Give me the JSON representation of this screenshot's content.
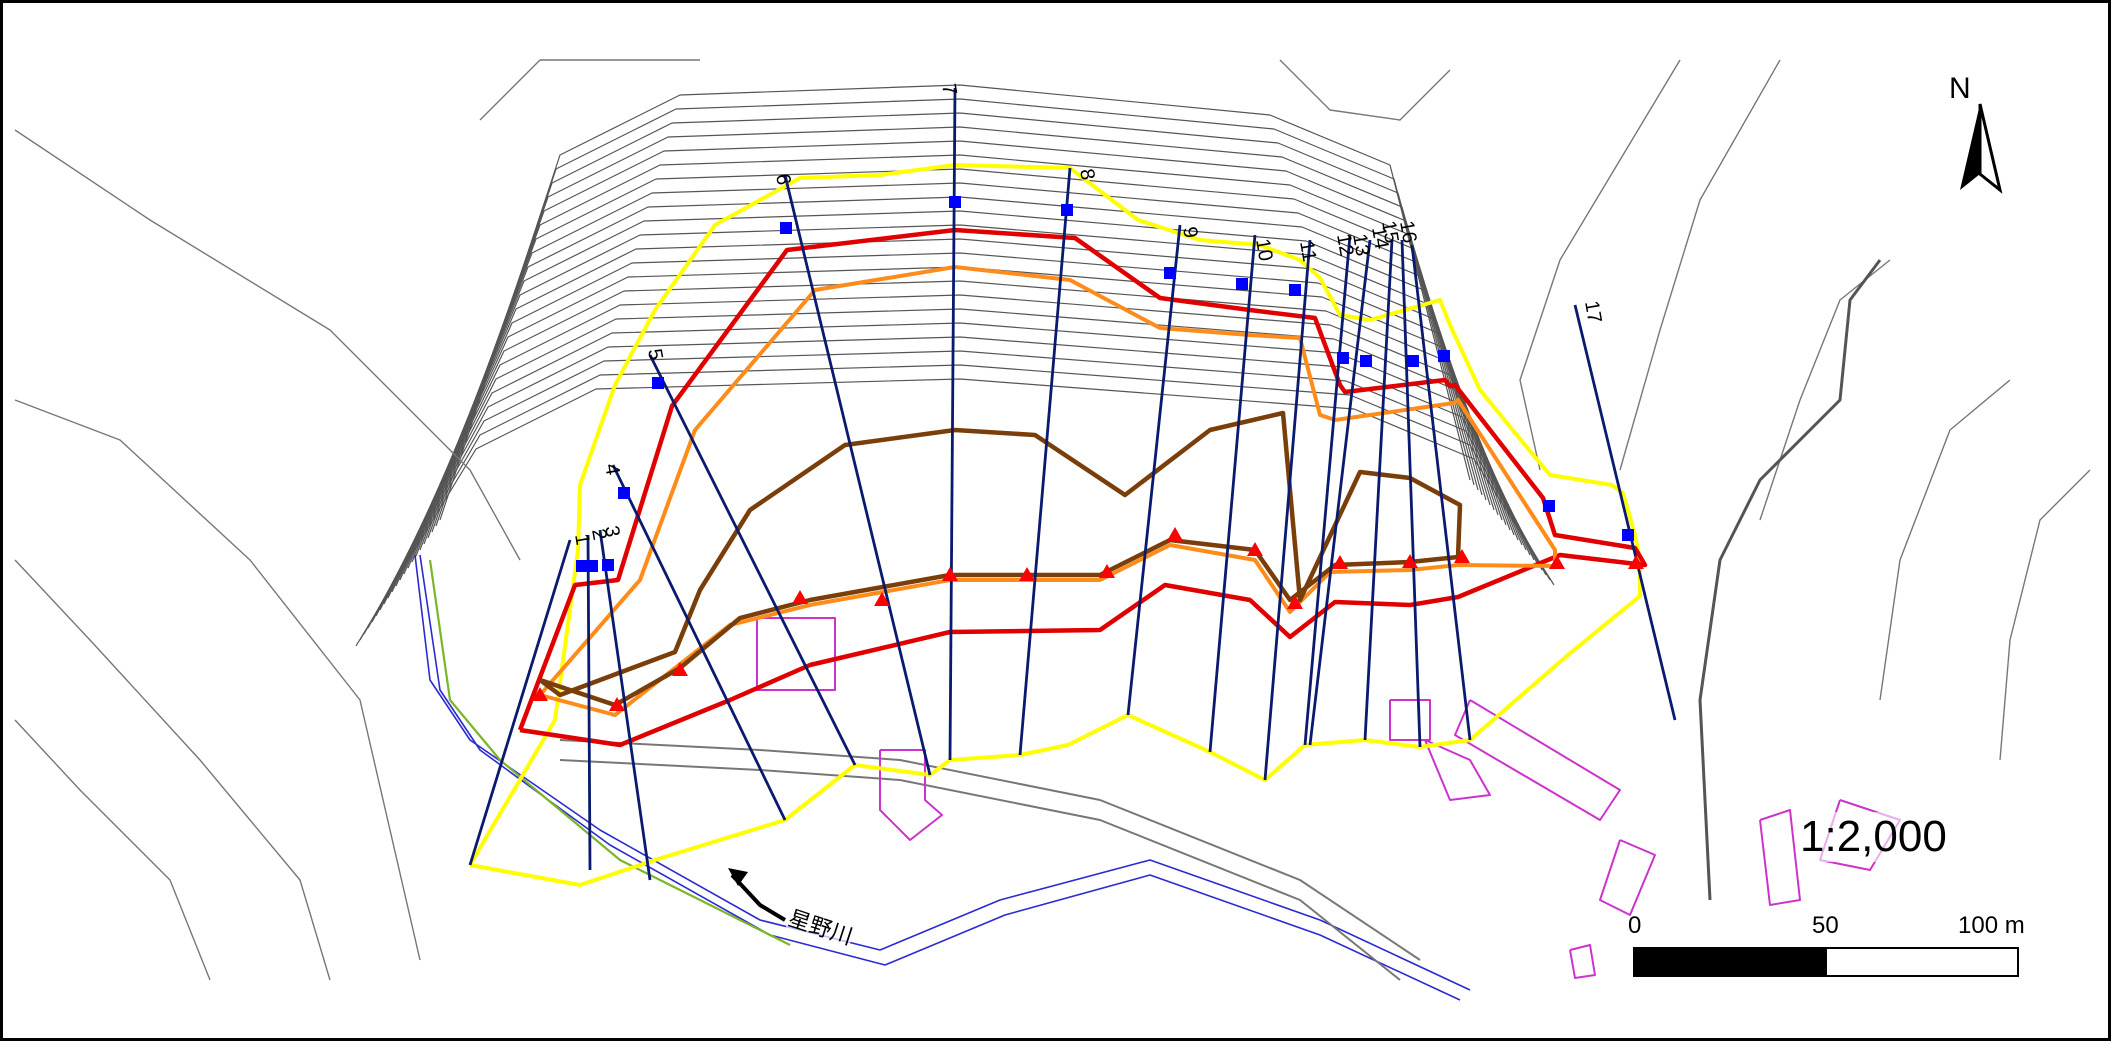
{
  "scale_ratio": "1:2,000",
  "scale_bar": {
    "tick_0": "0",
    "tick_50": "50",
    "tick_100": "100 m"
  },
  "north_label": "N",
  "river_label": "星野川",
  "line_numbers": [
    "1",
    "2",
    "3",
    "4",
    "5",
    "6",
    "7",
    "8",
    "9",
    "10",
    "11",
    "12",
    "13",
    "14",
    "15",
    "16",
    "17"
  ],
  "colors": {
    "boundary_outer": "#ffff00",
    "line_red": "#e00000",
    "line_orange": "#ff8c1a",
    "line_brown": "#7a3e0a",
    "survey_line": "#0a1a6e",
    "top_marker": "#0000ff",
    "toe_marker": "#ff0000",
    "building": "#cc33cc",
    "contour": "#555555"
  },
  "icons": [
    "north-arrow-icon",
    "river-flow-arrow-icon"
  ]
}
